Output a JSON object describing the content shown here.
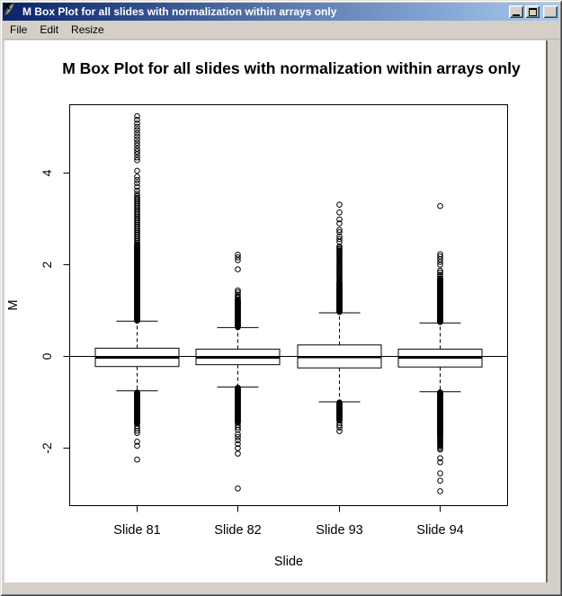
{
  "window": {
    "title": "M Box Plot for all slides with normalization within arrays only",
    "controls": [
      "minimize",
      "maximize",
      "close"
    ]
  },
  "menu": {
    "items": [
      {
        "label": "File"
      },
      {
        "label": "Edit"
      },
      {
        "label": "Resize"
      }
    ]
  },
  "colors": {
    "titlebar_gradient_start": "#0a246a",
    "titlebar_gradient_end": "#a6caf0",
    "chrome": "#d4d0c8",
    "canvas": "#ffffff",
    "plot_ink": "#000000"
  },
  "chart_data": {
    "type": "boxplot",
    "title": "M Box Plot for all slides with normalization within arrays only",
    "xlabel": "Slide",
    "ylabel": "M",
    "ylim": [
      -3.25,
      5.5
    ],
    "yticks": [
      -2,
      0,
      2,
      4
    ],
    "reference_line_y": 0,
    "grid": false,
    "categories": [
      "Slide 81",
      "Slide 82",
      "Slide 93",
      "Slide 94"
    ],
    "boxes": [
      {
        "label": "Slide 81",
        "q1": -0.22,
        "median": -0.03,
        "q3": 0.18,
        "whisker_low": -0.75,
        "whisker_high": 0.77,
        "outliers_high": {
          "ranges": [
            [
              0.78,
              2.45,
              0.012
            ],
            [
              2.48,
              3.5,
              0.035
            ]
          ],
          "points": [
            3.55,
            3.62,
            3.7,
            3.78,
            3.85,
            3.92,
            4.05,
            4.28,
            4.34,
            4.41,
            4.47,
            4.53,
            4.6,
            4.66,
            4.73,
            4.8,
            4.87,
            4.94,
            5.01,
            5.08,
            5.16,
            5.24
          ]
        },
        "outliers_low": {
          "ranges": [
            [
              -1.47,
              -0.78,
              0.012
            ]
          ],
          "points": [
            -1.52,
            -1.57,
            -1.62,
            -1.67,
            -1.86,
            -1.95,
            -2.25
          ]
        }
      },
      {
        "label": "Slide 82",
        "q1": -0.18,
        "median": -0.03,
        "q3": 0.16,
        "whisker_low": -0.67,
        "whisker_high": 0.63,
        "outliers_high": {
          "ranges": [
            [
              0.64,
              1.25,
              0.012
            ]
          ],
          "points": [
            1.28,
            1.31,
            1.35,
            1.4,
            1.44,
            1.9,
            2.1,
            2.16,
            2.22
          ]
        },
        "outliers_low": {
          "ranges": [
            [
              -1.45,
              -0.68,
              0.012
            ]
          ],
          "points": [
            -1.5,
            -1.55,
            -1.6,
            -1.7,
            -1.76,
            -1.83,
            -1.91,
            -2.0,
            -2.12,
            -2.88
          ]
        }
      },
      {
        "label": "Slide 93",
        "q1": -0.25,
        "median": -0.02,
        "q3": 0.25,
        "whisker_low": -0.99,
        "whisker_high": 0.95,
        "outliers_high": {
          "ranges": [
            [
              0.97,
              1.62,
              0.012
            ],
            [
              1.65,
              2.4,
              0.03
            ]
          ],
          "points": [
            2.5,
            2.56,
            2.62,
            2.71,
            2.76,
            2.9,
            2.99,
            3.14,
            3.31
          ]
        },
        "outliers_low": {
          "ranges": [
            [
              -1.4,
              -1.0,
              0.012
            ]
          ],
          "points": [
            -1.45,
            -1.5,
            -1.55,
            -1.63
          ]
        }
      },
      {
        "label": "Slide 94",
        "q1": -0.23,
        "median": -0.03,
        "q3": 0.16,
        "whisker_low": -0.77,
        "whisker_high": 0.73,
        "outliers_high": {
          "ranges": [
            [
              0.75,
              1.7,
              0.012
            ]
          ],
          "points": [
            1.74,
            1.78,
            1.83,
            1.87,
            2.0,
            2.06,
            2.12,
            2.18,
            2.23,
            3.28
          ]
        },
        "outliers_low": {
          "ranges": [
            [
              -1.73,
              -0.78,
              0.012
            ],
            [
              -1.96,
              -1.76,
              0.02
            ]
          ],
          "points": [
            -2.0,
            -2.03,
            -2.22,
            -2.31,
            -2.55,
            -2.71,
            -2.94
          ]
        }
      }
    ]
  }
}
